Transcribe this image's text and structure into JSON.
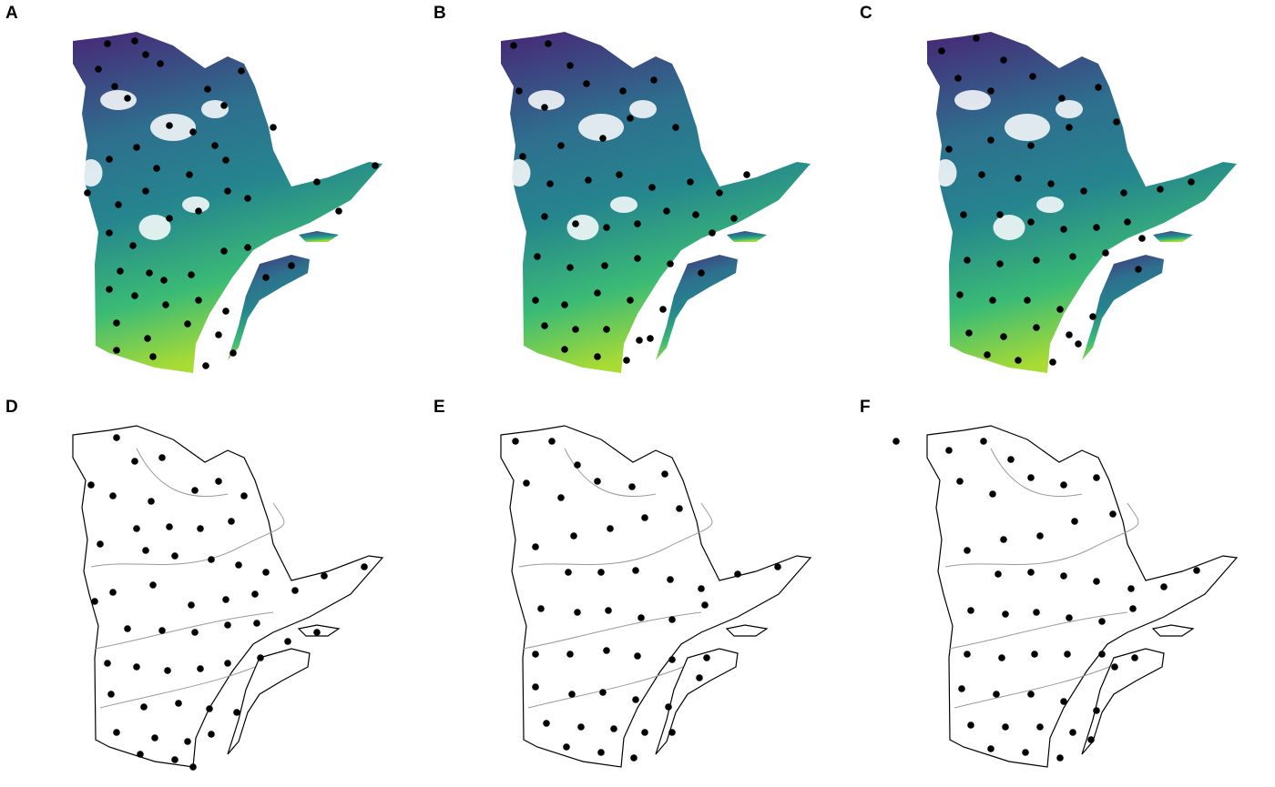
{
  "panels": [
    {
      "id": "A",
      "label": "A",
      "style": "raster"
    },
    {
      "id": "B",
      "label": "B",
      "style": "raster"
    },
    {
      "id": "C",
      "label": "C",
      "style": "raster"
    },
    {
      "id": "D",
      "label": "D",
      "style": "outline"
    },
    {
      "id": "E",
      "label": "E",
      "style": "outline"
    },
    {
      "id": "F",
      "label": "F",
      "style": "outline"
    }
  ],
  "colors": {
    "north": "#482676",
    "mid": "#2e6f8e",
    "teal": "#25858e",
    "south": "#3bbb75",
    "far_south": "#a8db34",
    "point": "#000000",
    "outline": "#000000",
    "region_boundary": "#9a9a9a"
  },
  "map": {
    "region": "Quebec",
    "point_symbol": "filled-circle",
    "raster_palette": "viridis"
  }
}
